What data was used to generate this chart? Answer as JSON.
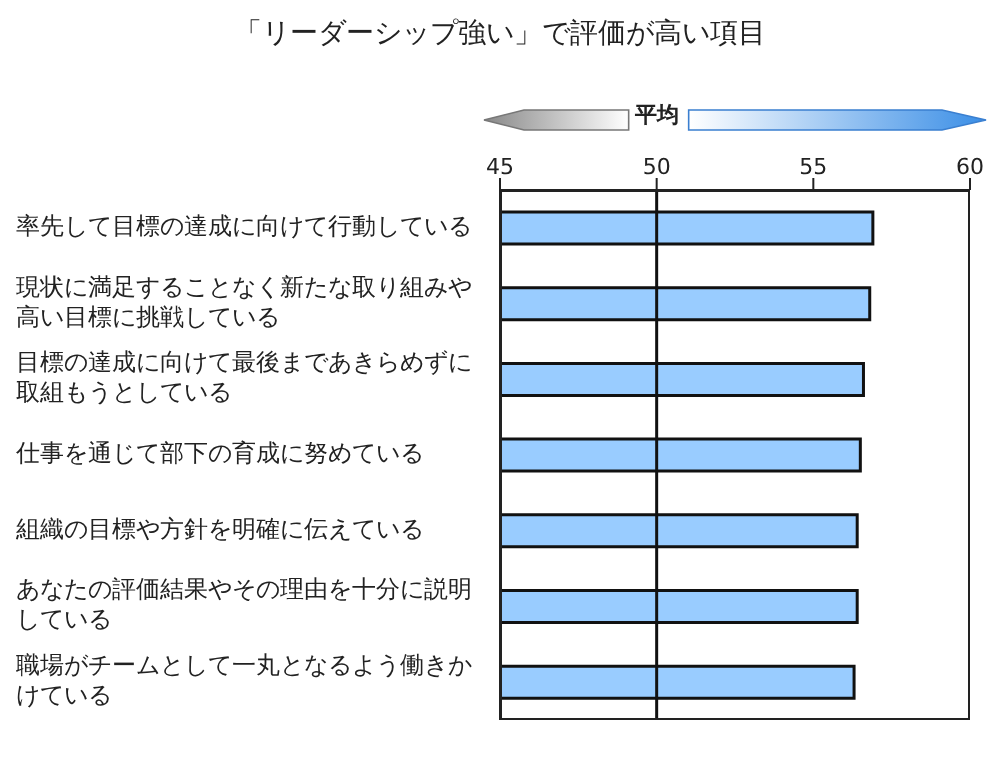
{
  "chart_data": {
    "type": "bar",
    "orientation": "horizontal",
    "title": "「リーダーシップ強い」で評価が高い項目",
    "categories": [
      "率先して目標の達成に向けて行動している",
      "現状に満足することなく新たな取り組みや高い目標に挑戦している",
      "目標の達成に向けて最後まであきらめずに取組もうとしている",
      "仕事を通じて部下の育成に努めている",
      "組織の目標や方針を明確に伝えている",
      "あなたの評価結果やその理由を十分に説明している",
      "職場がチームとして一丸となるよう働きかけている"
    ],
    "values": [
      56.9,
      56.8,
      56.6,
      56.5,
      56.4,
      56.4,
      56.3
    ],
    "color": "#99ccff",
    "xlim": [
      45,
      60
    ],
    "xticks": [
      45,
      50,
      55,
      60
    ],
    "ref_lines": [
      {
        "axis": "x",
        "value": 50,
        "label": "平均"
      }
    ],
    "grid": false
  }
}
